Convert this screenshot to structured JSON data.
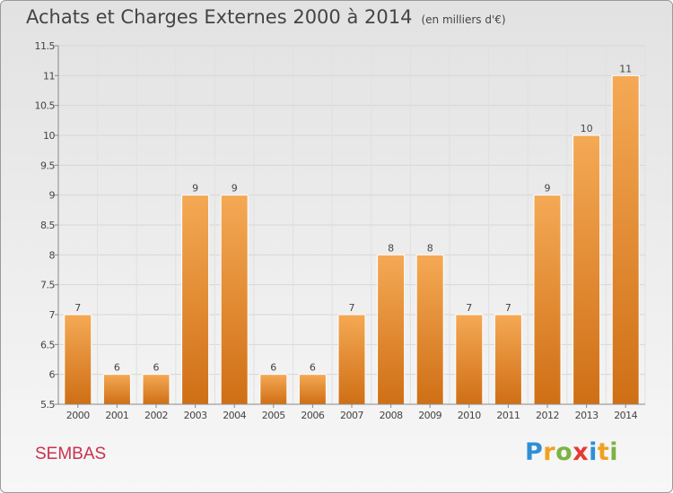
{
  "title": "Achats et Charges Externes 2000 à 2014",
  "unit": "(en milliers d'€)",
  "commune": "SEMBAS",
  "logo": {
    "text": "Proxiti",
    "letters": [
      {
        "ch": "P",
        "color": "#2f8fd6"
      },
      {
        "ch": "r",
        "color": "#f0a020"
      },
      {
        "ch": "o",
        "color": "#7cb342"
      },
      {
        "ch": "x",
        "color": "#e53935"
      },
      {
        "ch": "i",
        "color": "#2f8fd6"
      },
      {
        "ch": "t",
        "color": "#f0a020"
      },
      {
        "ch": "i",
        "color": "#7cb342"
      }
    ]
  },
  "colors": {
    "bar_light": "#f5a955",
    "bar_dark": "#cf6f15",
    "title": "#444444",
    "commune": "#c8324e"
  },
  "chart_data": {
    "type": "bar",
    "categories": [
      "2000",
      "2001",
      "2002",
      "2003",
      "2004",
      "2005",
      "2006",
      "2007",
      "2008",
      "2009",
      "2010",
      "2011",
      "2012",
      "2013",
      "2014"
    ],
    "values": [
      7,
      6,
      6,
      9,
      9,
      6,
      6,
      7,
      8,
      8,
      7,
      7,
      9,
      10,
      11
    ],
    "labels": [
      "7",
      "6",
      "6",
      "9",
      "9",
      "6",
      "6",
      "7",
      "8",
      "8",
      "7",
      "7",
      "9",
      "10",
      "11"
    ],
    "ylim": [
      5.5,
      11.5
    ],
    "yticks": [
      5.5,
      6,
      6.5,
      7,
      7.5,
      8,
      8.5,
      9,
      9.5,
      10,
      10.5,
      11,
      11.5
    ],
    "ytick_labels": [
      "5.5",
      "6",
      "6.5",
      "7",
      "7.5",
      "8",
      "8.5",
      "9",
      "9.5",
      "10",
      "10.5",
      "11",
      "11.5"
    ],
    "grid": true,
    "title": "Achats et Charges Externes 2000 à 2014",
    "xlabel": "",
    "ylabel": ""
  }
}
